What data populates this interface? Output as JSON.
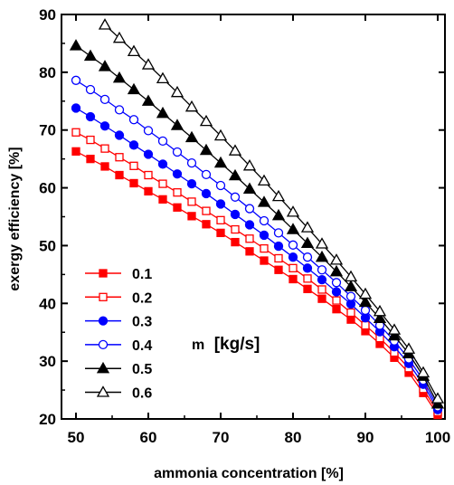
{
  "chart_data": {
    "type": "line",
    "xlabel": "ammonia concentration [%]",
    "ylabel": "exergy efficiency [%]",
    "xlim": [
      48,
      101
    ],
    "ylim": [
      20,
      90
    ],
    "x_ticks": [
      50,
      60,
      70,
      80,
      90,
      100
    ],
    "y_ticks": [
      20,
      30,
      40,
      50,
      60,
      70,
      80,
      90
    ],
    "legend_title": "m",
    "legend_unit": "[kg/s]",
    "legend_position": "lower-left",
    "grid": false,
    "series": [
      {
        "name": "0.1",
        "color": "#ff0000",
        "marker": "square",
        "filled": true,
        "x": [
          50,
          52,
          54,
          56,
          58,
          60,
          62,
          64,
          66,
          68,
          70,
          72,
          74,
          76,
          78,
          80,
          82,
          84,
          86,
          88,
          90,
          92,
          94,
          96,
          98,
          100
        ],
        "y": [
          66.3,
          65.0,
          63.7,
          62.2,
          60.8,
          59.4,
          58.0,
          56.6,
          55.1,
          53.7,
          52.2,
          50.6,
          49.0,
          47.4,
          45.8,
          44.2,
          42.5,
          40.8,
          39.0,
          37.2,
          35.2,
          33.0,
          30.6,
          28.0,
          24.5,
          20.7
        ]
      },
      {
        "name": "0.2",
        "color": "#ff0000",
        "marker": "square",
        "filled": false,
        "x": [
          50,
          52,
          54,
          56,
          58,
          60,
          62,
          64,
          66,
          68,
          70,
          72,
          74,
          76,
          78,
          80,
          82,
          84,
          86,
          88,
          90,
          92,
          94,
          96,
          98,
          100
        ],
        "y": [
          69.6,
          68.3,
          66.8,
          65.3,
          63.8,
          62.2,
          60.7,
          59.2,
          57.6,
          56.0,
          54.4,
          52.8,
          51.2,
          49.5,
          47.8,
          46.1,
          44.3,
          42.4,
          40.5,
          38.4,
          36.2,
          34.0,
          31.5,
          28.8,
          25.2,
          21.2
        ]
      },
      {
        "name": "0.3",
        "color": "#0000ff",
        "marker": "circle",
        "filled": true,
        "x": [
          50,
          52,
          54,
          56,
          58,
          60,
          62,
          64,
          66,
          68,
          70,
          72,
          74,
          76,
          78,
          80,
          82,
          84,
          86,
          88,
          90,
          92,
          94,
          96,
          98,
          100
        ],
        "y": [
          73.8,
          72.3,
          70.7,
          69.1,
          67.4,
          65.8,
          64.1,
          62.4,
          60.7,
          59.0,
          57.2,
          55.4,
          53.6,
          51.8,
          49.9,
          48.0,
          46.1,
          44.1,
          42.0,
          39.9,
          37.5,
          35.1,
          32.5,
          29.6,
          26.0,
          21.6
        ]
      },
      {
        "name": "0.4",
        "color": "#0000ff",
        "marker": "circle",
        "filled": false,
        "x": [
          50,
          52,
          54,
          56,
          58,
          60,
          62,
          64,
          66,
          68,
          70,
          72,
          74,
          76,
          78,
          80,
          82,
          84,
          86,
          88,
          90,
          92,
          94,
          96,
          98,
          100
        ],
        "y": [
          78.6,
          77.0,
          75.3,
          73.5,
          71.8,
          69.9,
          68.1,
          66.2,
          64.3,
          62.3,
          60.4,
          58.4,
          56.4,
          54.3,
          52.2,
          50.1,
          48.0,
          45.8,
          43.6,
          41.2,
          38.8,
          36.2,
          33.5,
          30.4,
          26.7,
          22.1
        ]
      },
      {
        "name": "0.5",
        "color": "#000000",
        "marker": "triangle",
        "filled": true,
        "x": [
          50,
          52,
          54,
          56,
          58,
          60,
          62,
          64,
          66,
          68,
          70,
          72,
          74,
          76,
          78,
          80,
          82,
          84,
          86,
          88,
          90,
          92,
          94,
          96,
          98,
          100
        ],
        "y": [
          84.6,
          82.8,
          81.0,
          79.0,
          77.0,
          75.0,
          72.9,
          70.8,
          68.7,
          66.5,
          64.3,
          62.1,
          59.8,
          57.5,
          55.2,
          52.8,
          50.4,
          48.0,
          45.5,
          42.9,
          40.2,
          37.4,
          34.4,
          31.3,
          27.4,
          22.6
        ]
      },
      {
        "name": "0.6",
        "color": "#000000",
        "marker": "triangle",
        "filled": false,
        "x": [
          54,
          56,
          58,
          60,
          62,
          64,
          66,
          68,
          70,
          72,
          74,
          76,
          78,
          80,
          82,
          84,
          86,
          88,
          90,
          92,
          94,
          96,
          98,
          100
        ],
        "y": [
          88.2,
          85.9,
          83.6,
          81.3,
          78.9,
          76.5,
          74.0,
          71.5,
          69.0,
          66.4,
          63.8,
          61.2,
          58.5,
          55.8,
          53.1,
          50.3,
          47.5,
          44.6,
          41.6,
          38.6,
          35.4,
          32.1,
          28.0,
          23.5
        ]
      }
    ]
  }
}
